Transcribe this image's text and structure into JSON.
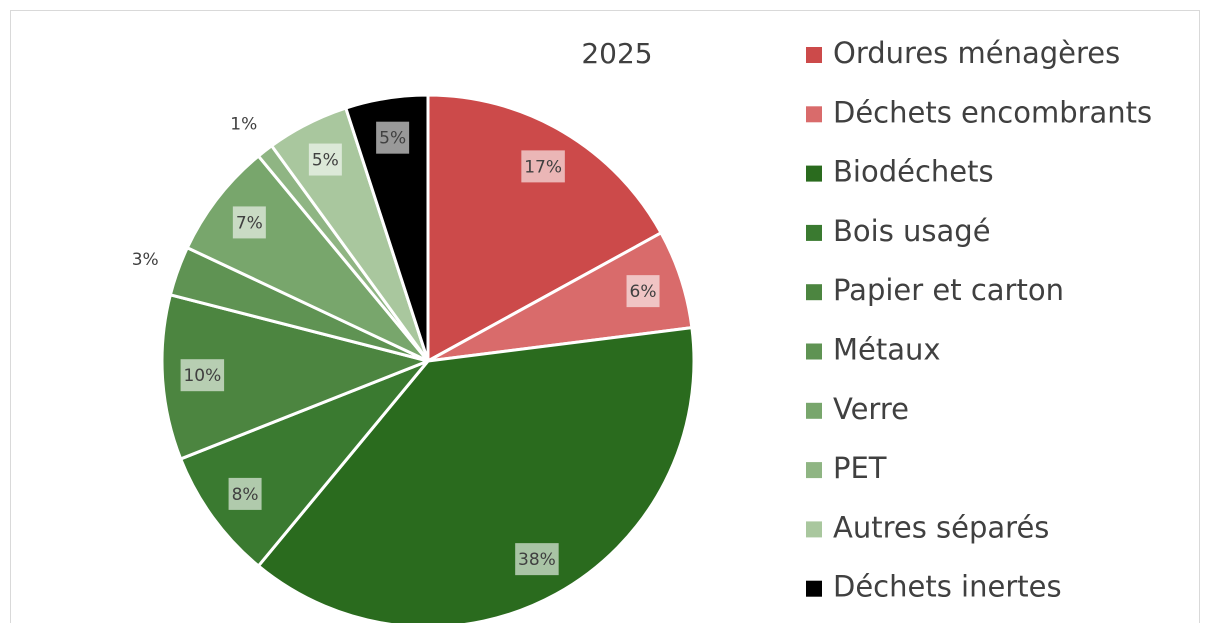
{
  "chart_data": {
    "type": "pie",
    "title": "2025",
    "categories": [
      "Ordures ménagères",
      "Déchets encombrants",
      "Biodéchets",
      "Bois usagé",
      "Papier et carton",
      "Métaux",
      "Verre",
      "PET",
      "Autres séparés",
      "Déchets inertes"
    ],
    "values": [
      17,
      6,
      38,
      8,
      10,
      3,
      7,
      1,
      5,
      5
    ],
    "value_labels": [
      "17%",
      "6%",
      "38%",
      "8%",
      "10%",
      "3%",
      "7%",
      "1%",
      "5%",
      "5%"
    ],
    "colors": [
      "#cc4a4a",
      "#d96b6b",
      "#2a6b1e",
      "#3a7a30",
      "#4c8540",
      "#5f9353",
      "#78a66c",
      "#8fb583",
      "#a9c79e",
      "#000000"
    ],
    "legend": "right"
  }
}
